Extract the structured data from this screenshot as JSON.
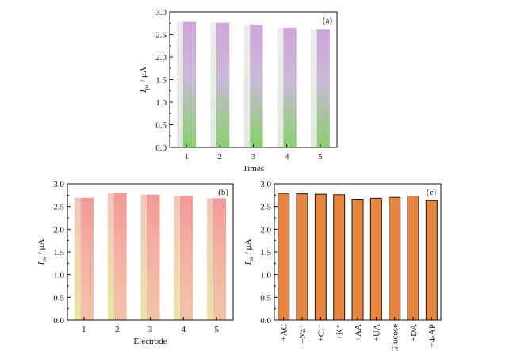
{
  "chart_data": [
    {
      "id": "a",
      "type": "bar",
      "panel_label": "(a)",
      "categories": [
        "1",
        "2",
        "3",
        "4",
        "5"
      ],
      "values": [
        2.78,
        2.76,
        2.72,
        2.65,
        2.61
      ],
      "xlabel": "Times",
      "ylabel_main": "I",
      "ylabel_sub": "pa",
      "ylabel_unit": " / μA",
      "ylim": [
        0,
        3.0
      ],
      "yticks": [
        "0.0",
        "0.5",
        "1.0",
        "1.5",
        "2.0",
        "2.5",
        "3.0"
      ],
      "grid": false,
      "colors": {
        "top": "#c9a2d8",
        "bottom": "#86d06a",
        "side": "#e6e2ea"
      }
    },
    {
      "id": "b",
      "type": "bar",
      "panel_label": "(b)",
      "categories": [
        "1",
        "2",
        "3",
        "4",
        "5"
      ],
      "values": [
        2.69,
        2.79,
        2.76,
        2.73,
        2.68
      ],
      "xlabel": "Electrode",
      "ylabel_main": "I",
      "ylabel_sub": "pa",
      "ylabel_unit": " / μA",
      "ylim": [
        0,
        3.0
      ],
      "yticks": [
        "0.0",
        "0.5",
        "1.0",
        "1.5",
        "2.0",
        "2.5",
        "3.0"
      ],
      "grid": false,
      "colors": {
        "top": "#f39d9a",
        "bottom": "#f3bfa0",
        "side": "#e9e7a4"
      }
    },
    {
      "id": "c",
      "type": "bar",
      "panel_label": "(c)",
      "categories": [
        "+AC",
        "+Na⁺",
        "+Cl⁻",
        "+K⁺",
        "+AA",
        "+UA",
        "+Glucose",
        "+DA",
        "+4-AP"
      ],
      "values": [
        2.79,
        2.78,
        2.77,
        2.76,
        2.66,
        2.68,
        2.7,
        2.73,
        2.63
      ],
      "xlabel": "",
      "ylabel_main": "I",
      "ylabel_sub": "pa",
      "ylabel_unit": " / μA",
      "ylim": [
        0,
        3.0
      ],
      "yticks": [
        "0.0",
        "0.5",
        "1.0",
        "1.5",
        "2.0",
        "2.5",
        "3.0"
      ],
      "grid": false,
      "colors": {
        "fill": "#e8853f",
        "stroke": "#1a1a1a"
      }
    }
  ]
}
